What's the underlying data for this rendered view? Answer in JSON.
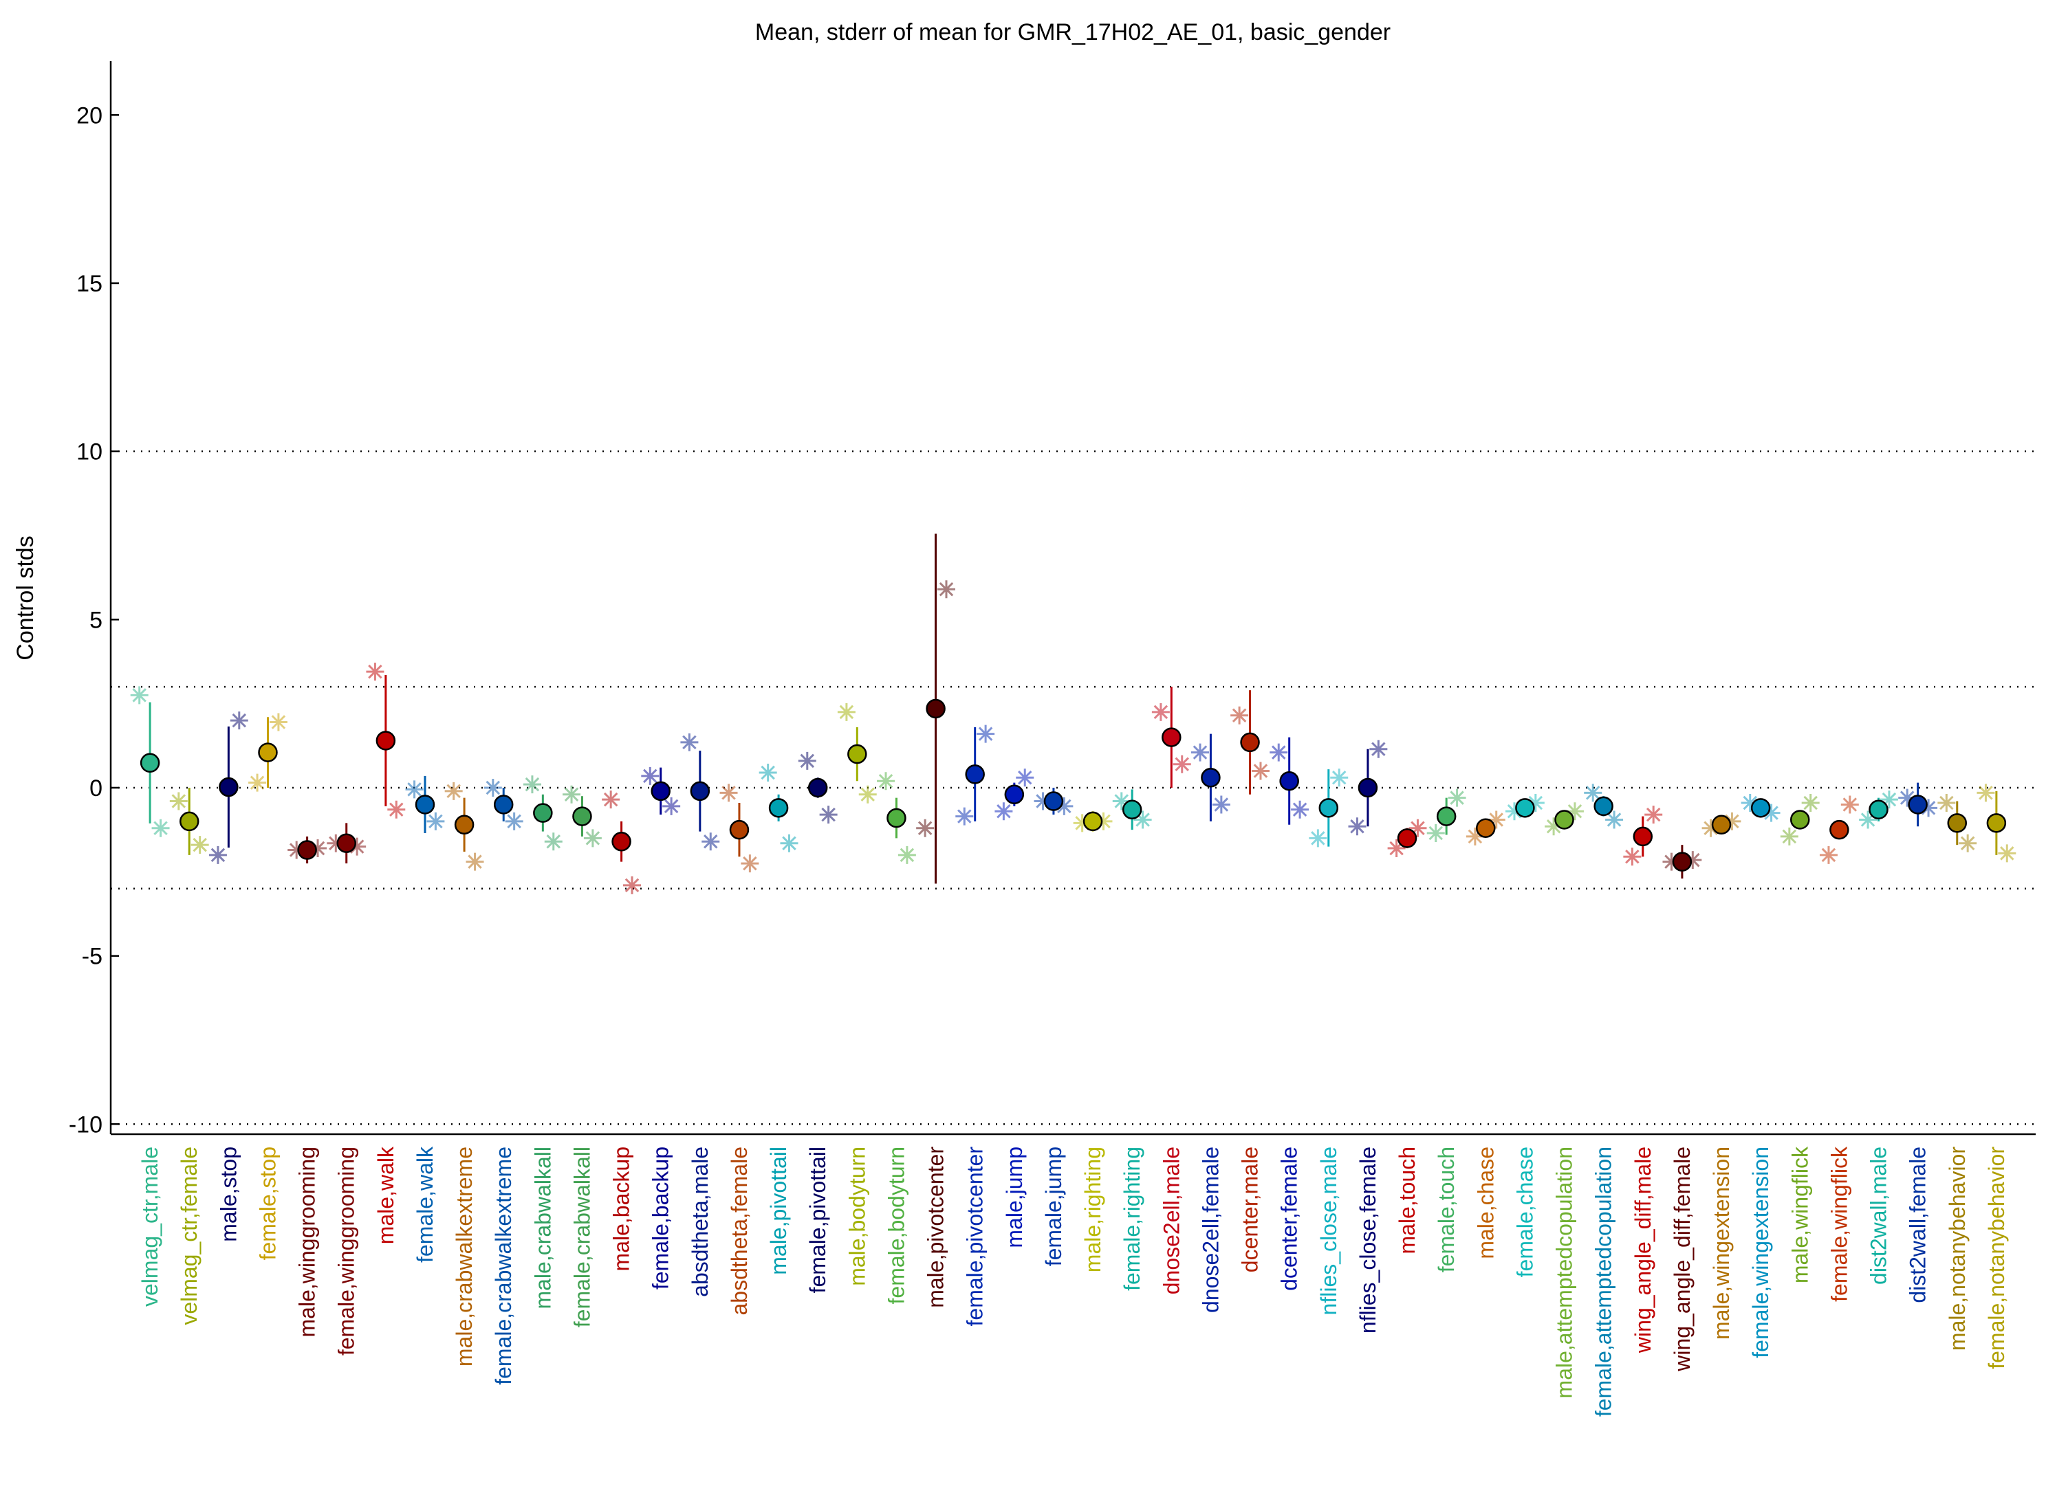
{
  "chart_data": {
    "type": "errorbar",
    "title": "Mean, stderr of mean for GMR_17H02_AE_01, basic_gender",
    "ylabel": "Control stds",
    "categories": [
      "velmag_ctr,male",
      "velmag_ctr,female",
      "male,stop",
      "female,stop",
      "male,winggrooming",
      "female,winggrooming",
      "male,walk",
      "female,walk",
      "male,crabwalkextreme",
      "female,crabwalkextreme",
      "male,crabwalkall",
      "female,crabwalkall",
      "male,backup",
      "female,backup",
      "absdtheta,male",
      "absdtheta,female",
      "male,pivottail",
      "female,pivottail",
      "male,bodyturn",
      "female,bodyturn",
      "male,pivotcenter",
      "female,pivotcenter",
      "male,jump",
      "female,jump",
      "male,righting",
      "female,righting",
      "dnose2ell,male",
      "dnose2ell,female",
      "dcenter,male",
      "dcenter,female",
      "nflies_close,male",
      "nflies_close,female",
      "male,touch",
      "female,touch",
      "male,chase",
      "female,chase",
      "male,attemptedcopulation",
      "female,attemptedcopulation",
      "wing_angle_diff,male",
      "wing_angle_diff,female",
      "male,wingextension",
      "female,wingextension",
      "male,wingflick",
      "female,wingflick",
      "dist2wall,male",
      "dist2wall,female",
      "male,notanybehavior",
      "female,notanybehavior"
    ],
    "colors": [
      "#2bb58a",
      "#9aa800",
      "#000066",
      "#c8a000",
      "#6b0000",
      "#7a0000",
      "#c00000",
      "#0060b0",
      "#b06000",
      "#0050a8",
      "#30a060",
      "#40a050",
      "#b00000",
      "#000090",
      "#001888",
      "#b04000",
      "#00a0b0",
      "#000060",
      "#a0b000",
      "#50b040",
      "#500000",
      "#0028b0",
      "#0018b8",
      "#0038a8",
      "#b8b800",
      "#10b0a0",
      "#c00010",
      "#0020a0",
      "#b02000",
      "#0010a8",
      "#10b0c0",
      "#000070",
      "#c00000",
      "#40b060",
      "#c06000",
      "#10b8b8",
      "#70b030",
      "#0080b0",
      "#c00000",
      "#600000",
      "#b07000",
      "#0090c0",
      "#70a820",
      "#c03000",
      "#10b0a0",
      "#0030a0",
      "#a08000",
      "#b0a000"
    ],
    "values": [
      0.74,
      -1.0,
      0.02,
      1.05,
      -1.85,
      -1.65,
      1.4,
      -0.5,
      -1.1,
      -0.5,
      -0.75,
      -0.85,
      -1.6,
      -0.1,
      -0.1,
      -1.25,
      -0.6,
      0.0,
      1.0,
      -0.9,
      2.35,
      0.4,
      -0.2,
      -0.4,
      -1.0,
      -0.65,
      1.5,
      0.3,
      1.35,
      0.2,
      -0.6,
      0.0,
      -1.5,
      -0.85,
      -1.2,
      -0.6,
      -0.95,
      -0.55,
      -1.45,
      -2.2,
      -1.1,
      -0.6,
      -0.95,
      -1.25,
      -0.65,
      -0.5,
      -1.05,
      -1.05
    ],
    "errors": [
      1.8,
      1.0,
      1.8,
      1.05,
      0.4,
      0.6,
      1.95,
      0.85,
      0.8,
      0.5,
      0.55,
      0.6,
      0.6,
      0.7,
      1.2,
      0.8,
      0.4,
      0.3,
      0.8,
      0.6,
      5.2,
      1.4,
      0.35,
      0.4,
      0.3,
      0.6,
      1.5,
      1.3,
      1.55,
      1.3,
      1.15,
      1.15,
      0.3,
      0.55,
      0.2,
      0.2,
      0.2,
      0.3,
      0.6,
      0.5,
      0.15,
      0.15,
      0.2,
      0.25,
      0.35,
      0.65,
      0.65,
      0.95
    ],
    "points_left": [
      2.75,
      -0.4,
      -2.0,
      0.15,
      -1.85,
      -1.65,
      3.45,
      -0.05,
      -0.1,
      0.0,
      0.1,
      -0.2,
      -0.35,
      0.35,
      1.35,
      -0.15,
      0.45,
      0.8,
      2.25,
      0.2,
      -1.2,
      -0.85,
      -0.7,
      -0.4,
      -1.05,
      -0.4,
      2.25,
      1.05,
      2.15,
      1.05,
      -1.5,
      -1.15,
      -1.8,
      -1.35,
      -1.45,
      -0.7,
      -1.15,
      -0.15,
      -2.05,
      -2.2,
      -1.2,
      -0.45,
      -1.45,
      -2.0,
      -0.95,
      -0.3,
      -0.45,
      -0.15
    ],
    "points_right": [
      -1.2,
      -1.7,
      2.0,
      1.95,
      -1.8,
      -1.75,
      -0.65,
      -1.0,
      -2.2,
      -1.0,
      -1.6,
      -1.5,
      -2.9,
      -0.55,
      -1.6,
      -2.25,
      -1.65,
      -0.8,
      -0.2,
      -2.0,
      5.9,
      1.6,
      0.3,
      -0.55,
      -1.0,
      -0.95,
      0.7,
      -0.5,
      0.5,
      -0.65,
      0.3,
      1.15,
      -1.2,
      -0.3,
      -0.95,
      -0.45,
      -0.7,
      -0.95,
      -0.8,
      -2.15,
      -1.0,
      -0.75,
      -0.45,
      -0.5,
      -0.35,
      -0.6,
      -1.65,
      -1.95
    ],
    "ylim": [
      -10.3,
      21.6
    ],
    "yticks": [
      -10,
      -5,
      0,
      5,
      10,
      15,
      20
    ],
    "hlines": [
      -10,
      -3,
      0,
      3,
      10
    ]
  }
}
